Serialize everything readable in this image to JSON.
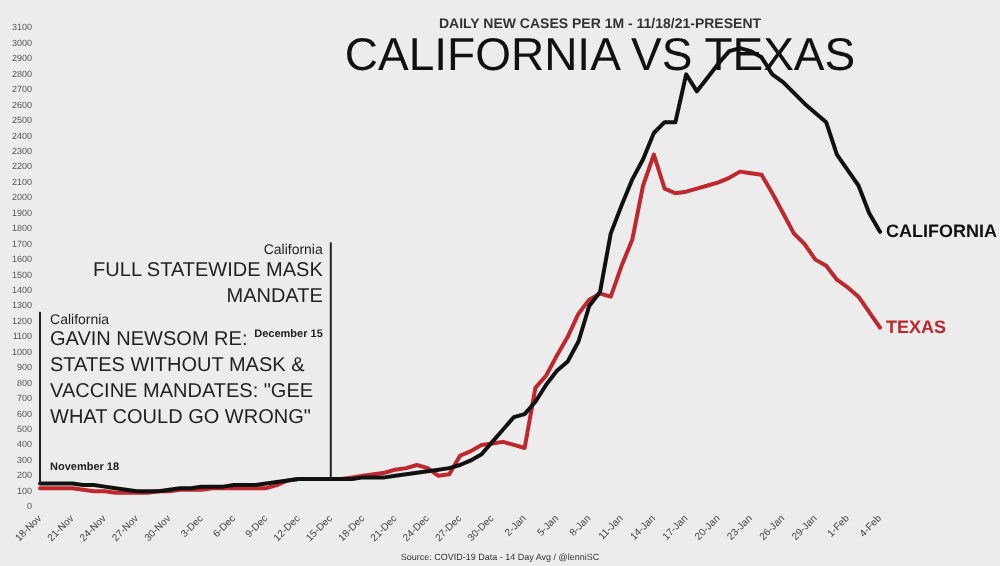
{
  "chart_data": {
    "type": "line",
    "title": "CALIFORNIA VS TEXAS",
    "subtitle": "DAILY NEW CASES PER 1M - 11/18/21-PRESENT",
    "categories": [
      "18-Nov",
      null,
      null,
      "21-Nov",
      null,
      null,
      "24-Nov",
      null,
      null,
      "27-Nov",
      null,
      null,
      "30-Nov",
      null,
      null,
      "3-Dec",
      null,
      null,
      "6-Dec",
      null,
      null,
      "9-Dec",
      null,
      null,
      "12-Dec",
      null,
      null,
      "15-Dec",
      null,
      null,
      "18-Dec",
      null,
      null,
      "21-Dec",
      null,
      null,
      "24-Dec",
      null,
      null,
      "27-Dec",
      null,
      null,
      "30-Dec",
      null,
      null,
      "2-Jan",
      null,
      null,
      "5-Jan",
      null,
      null,
      "8-Jan",
      null,
      null,
      "11-Jan",
      null,
      null,
      "14-Jan",
      null,
      null,
      "17-Jan",
      null,
      null,
      "20-Jan",
      null,
      null,
      "23-Jan",
      null,
      null,
      "26-Jan",
      null,
      null,
      "29-Jan",
      null,
      null,
      "1-Feb",
      null,
      null,
      "4-Feb"
    ],
    "series": [
      {
        "name": "CALIFORNIA",
        "color": "#111111",
        "values": [
          150,
          150,
          150,
          150,
          140,
          140,
          130,
          120,
          110,
          100,
          100,
          100,
          110,
          120,
          120,
          130,
          130,
          130,
          140,
          140,
          140,
          150,
          160,
          170,
          180,
          180,
          180,
          180,
          180,
          180,
          190,
          190,
          190,
          200,
          210,
          220,
          230,
          240,
          250,
          270,
          300,
          340,
          420,
          500,
          580,
          600,
          680,
          790,
          880,
          940,
          1070,
          1300,
          1390,
          1770,
          1950,
          2120,
          2250,
          2420,
          2490,
          2490,
          2800,
          2690,
          2780,
          2870,
          2950,
          2970,
          2950,
          2910,
          2800,
          2750,
          2680,
          2610,
          2550,
          2490,
          2280,
          2180,
          2080,
          1900,
          1780
        ]
      },
      {
        "name": "TEXAS",
        "color": "#c0272d",
        "values": [
          120,
          120,
          120,
          120,
          110,
          100,
          100,
          90,
          90,
          90,
          90,
          100,
          100,
          110,
          110,
          110,
          120,
          120,
          120,
          120,
          120,
          120,
          140,
          170,
          180,
          180,
          180,
          180,
          180,
          190,
          200,
          210,
          220,
          240,
          250,
          270,
          250,
          200,
          210,
          330,
          360,
          400,
          410,
          420,
          400,
          380,
          770,
          850,
          980,
          1100,
          1250,
          1340,
          1380,
          1360,
          1560,
          1730,
          2080,
          2280,
          2060,
          2030,
          2040,
          2060,
          2080,
          2100,
          2130,
          2170,
          2160,
          2150,
          2030,
          1900,
          1770,
          1700,
          1600,
          1560,
          1470,
          1420,
          1360,
          1260,
          1160
        ]
      }
    ],
    "ylim": [
      0,
      3100
    ],
    "yticks": [
      0,
      100,
      200,
      300,
      400,
      500,
      600,
      700,
      800,
      900,
      1000,
      1100,
      1200,
      1300,
      1400,
      1500,
      1600,
      1700,
      1800,
      1900,
      2000,
      2100,
      2200,
      2300,
      2400,
      2500,
      2600,
      2700,
      2800,
      2900,
      3000,
      3100
    ],
    "marker": "none",
    "line_style": "solid",
    "ref_lines": [
      {
        "axis": "x",
        "value": "18-Nov",
        "label": "GAVIN NEWSOM RE: STATES WITHOUT MASK & VACCINE MANDATES: \"GEE WHAT COULD GO WRONG\""
      },
      {
        "axis": "x",
        "value": "15-Dec",
        "label": "FULL STATEWIDE MASK MANDATE"
      }
    ],
    "annotations": [
      {
        "text": "California",
        "x": "18-Nov",
        "y": 1210
      },
      {
        "text": "November 18",
        "x": "18-Nov",
        "y": 260
      },
      {
        "text": "California",
        "x": "15-Dec",
        "y": 1660
      },
      {
        "text": "December 15",
        "x": "15-Dec",
        "y": 1120
      },
      "Source: COVID-19 Data - 14 Day Avg / @lenniSC"
    ]
  }
}
